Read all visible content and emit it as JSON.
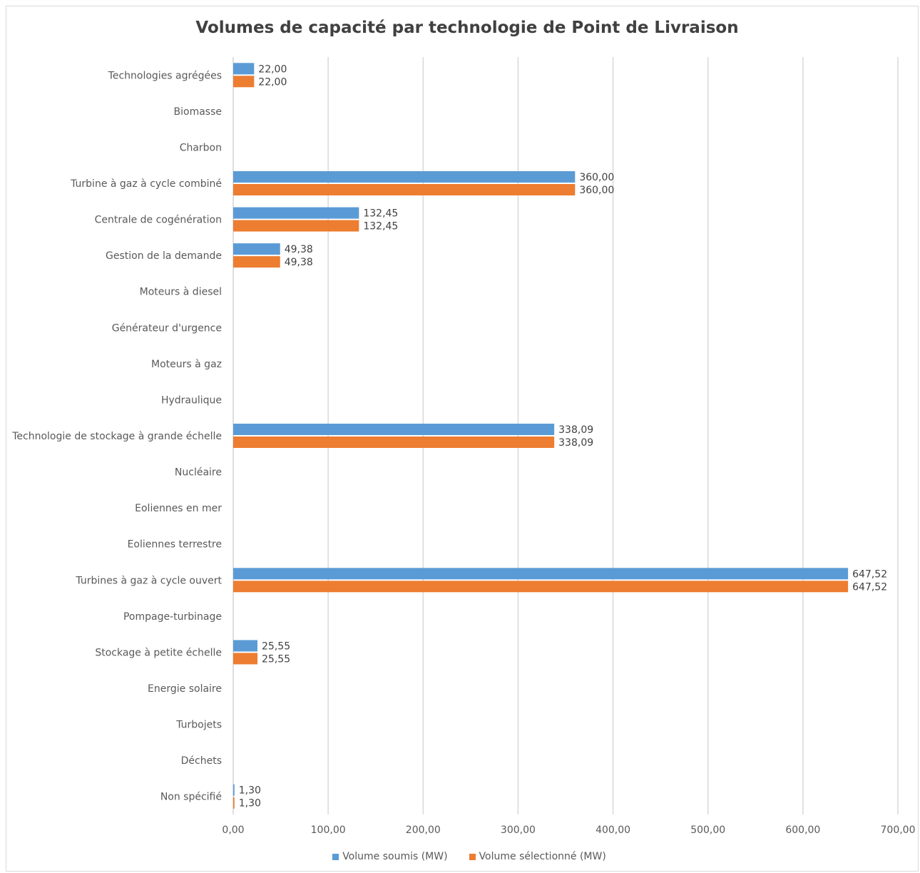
{
  "chart_data": {
    "type": "bar",
    "orientation": "horizontal",
    "title": "Volumes de capacité par technologie de Point de Livraison",
    "categories": [
      "Technologies agrégées",
      "Biomasse",
      "Charbon",
      "Turbine à gaz à cycle combiné",
      "Centrale de cogénération",
      "Gestion de la demande",
      "Moteurs à diesel",
      "Générateur d'urgence",
      "Moteurs à gaz",
      "Hydraulique",
      "Technologie de stockage à grande échelle",
      "Nucléaire",
      "Eoliennes en mer",
      "Eoliennes terrestre",
      "Turbines à gaz à cycle ouvert",
      "Pompage-turbinage",
      "Stockage à petite échelle",
      "Energie solaire",
      "Turbojets",
      "Déchets",
      "Non spécifié"
    ],
    "series": [
      {
        "name": "Volume soumis (MW)",
        "color": "#5b9bd5",
        "values": [
          22.0,
          null,
          null,
          360.0,
          132.45,
          49.38,
          null,
          null,
          null,
          null,
          338.09,
          null,
          null,
          null,
          647.52,
          null,
          25.55,
          null,
          null,
          null,
          1.3
        ],
        "labels": [
          "22,00",
          "",
          "",
          "360,00",
          "132,45",
          "49,38",
          "",
          "",
          "",
          "",
          "338,09",
          "",
          "",
          "",
          "647,52",
          "",
          "25,55",
          "",
          "",
          "",
          "1,30"
        ]
      },
      {
        "name": "Volume sélectionné (MW)",
        "color": "#ed7d31",
        "values": [
          22.0,
          null,
          null,
          360.0,
          132.45,
          49.38,
          null,
          null,
          null,
          null,
          338.09,
          null,
          null,
          null,
          647.52,
          null,
          25.55,
          null,
          null,
          null,
          1.3
        ],
        "labels": [
          "22,00",
          "",
          "",
          "360,00",
          "132,45",
          "49,38",
          "",
          "",
          "",
          "",
          "338,09",
          "",
          "",
          "",
          "647,52",
          "",
          "25,55",
          "",
          "",
          "",
          "1,30"
        ]
      }
    ],
    "xlim": [
      0,
      700
    ],
    "x_ticks": [
      0,
      100,
      200,
      300,
      400,
      500,
      600,
      700
    ],
    "x_tick_labels": [
      "0,00",
      "100,00",
      "200,00",
      "300,00",
      "400,00",
      "500,00",
      "600,00",
      "700,00"
    ],
    "grid": "vertical",
    "legend_position": "bottom"
  }
}
